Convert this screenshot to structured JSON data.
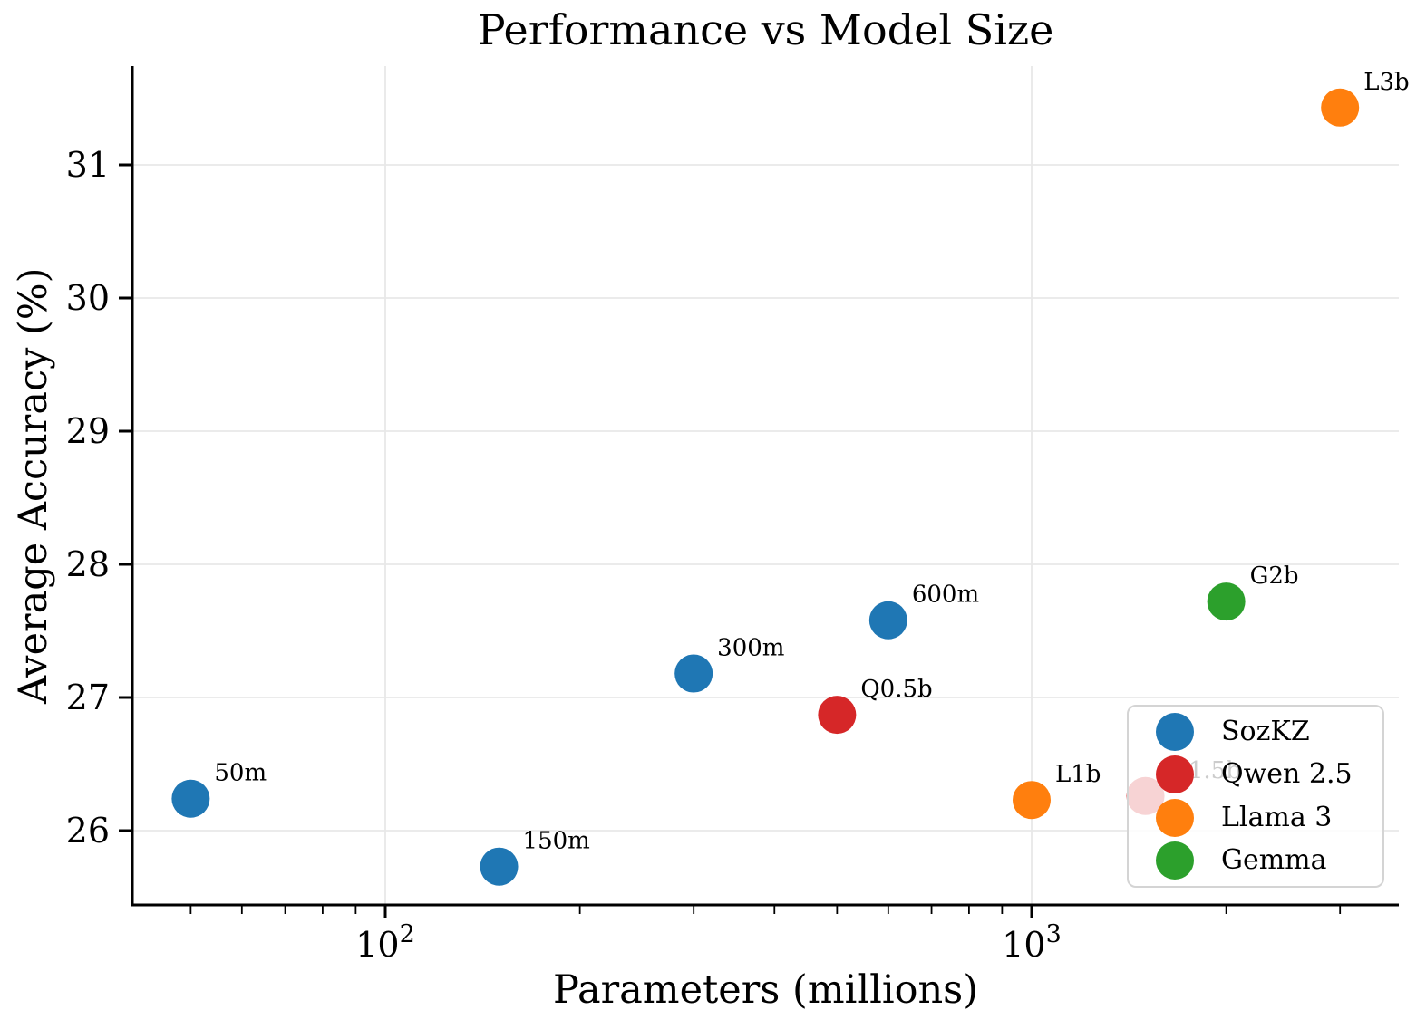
{
  "chart_data": {
    "type": "scatter",
    "title": "Performance vs Model Size",
    "xlabel": "Parameters (millions)",
    "ylabel": "Average Accuracy (%)",
    "x_scale": "log",
    "xlim": [
      41,
      3700
    ],
    "ylim": [
      25.44,
      31.74
    ],
    "grid": true,
    "grid_color": "#e8e8e8",
    "axis_color": "#000000",
    "background": "#ffffff",
    "x_major_ticks": [
      {
        "value": 100,
        "base": "10",
        "exp": "2"
      },
      {
        "value": 1000,
        "base": "10",
        "exp": "3"
      }
    ],
    "x_minor_ticks": [
      50,
      60,
      70,
      80,
      90,
      200,
      300,
      400,
      500,
      600,
      700,
      800,
      900,
      2000,
      3000
    ],
    "y_ticks": [
      26,
      27,
      28,
      29,
      30,
      31
    ],
    "legend": {
      "position": "lower-right",
      "entries": [
        "SozKZ",
        "Qwen 2.5",
        "Llama 3",
        "Gemma"
      ]
    },
    "series": [
      {
        "name": "SozKZ",
        "color": "#1f77b4",
        "points": [
          {
            "x": 50,
            "y": 26.24,
            "label": "50m"
          },
          {
            "x": 150,
            "y": 25.73,
            "label": "150m"
          },
          {
            "x": 300,
            "y": 27.18,
            "label": "300m"
          },
          {
            "x": 600,
            "y": 27.58,
            "label": "600m"
          }
        ]
      },
      {
        "name": "Qwen 2.5",
        "color": "#d62728",
        "points": [
          {
            "x": 500,
            "y": 26.87,
            "label": "Q0.5b"
          },
          {
            "x": 1500,
            "y": 26.26,
            "label": "Q1.5b",
            "note": "faded, partially hidden behind legend"
          }
        ]
      },
      {
        "name": "Llama 3",
        "color": "#ff7f0e",
        "points": [
          {
            "x": 1000,
            "y": 26.23,
            "label": "L1b"
          },
          {
            "x": 3000,
            "y": 31.43,
            "label": "L3b"
          }
        ]
      },
      {
        "name": "Gemma",
        "color": "#2ca02c",
        "points": [
          {
            "x": 2000,
            "y": 27.72,
            "label": "G2b"
          }
        ]
      }
    ]
  }
}
